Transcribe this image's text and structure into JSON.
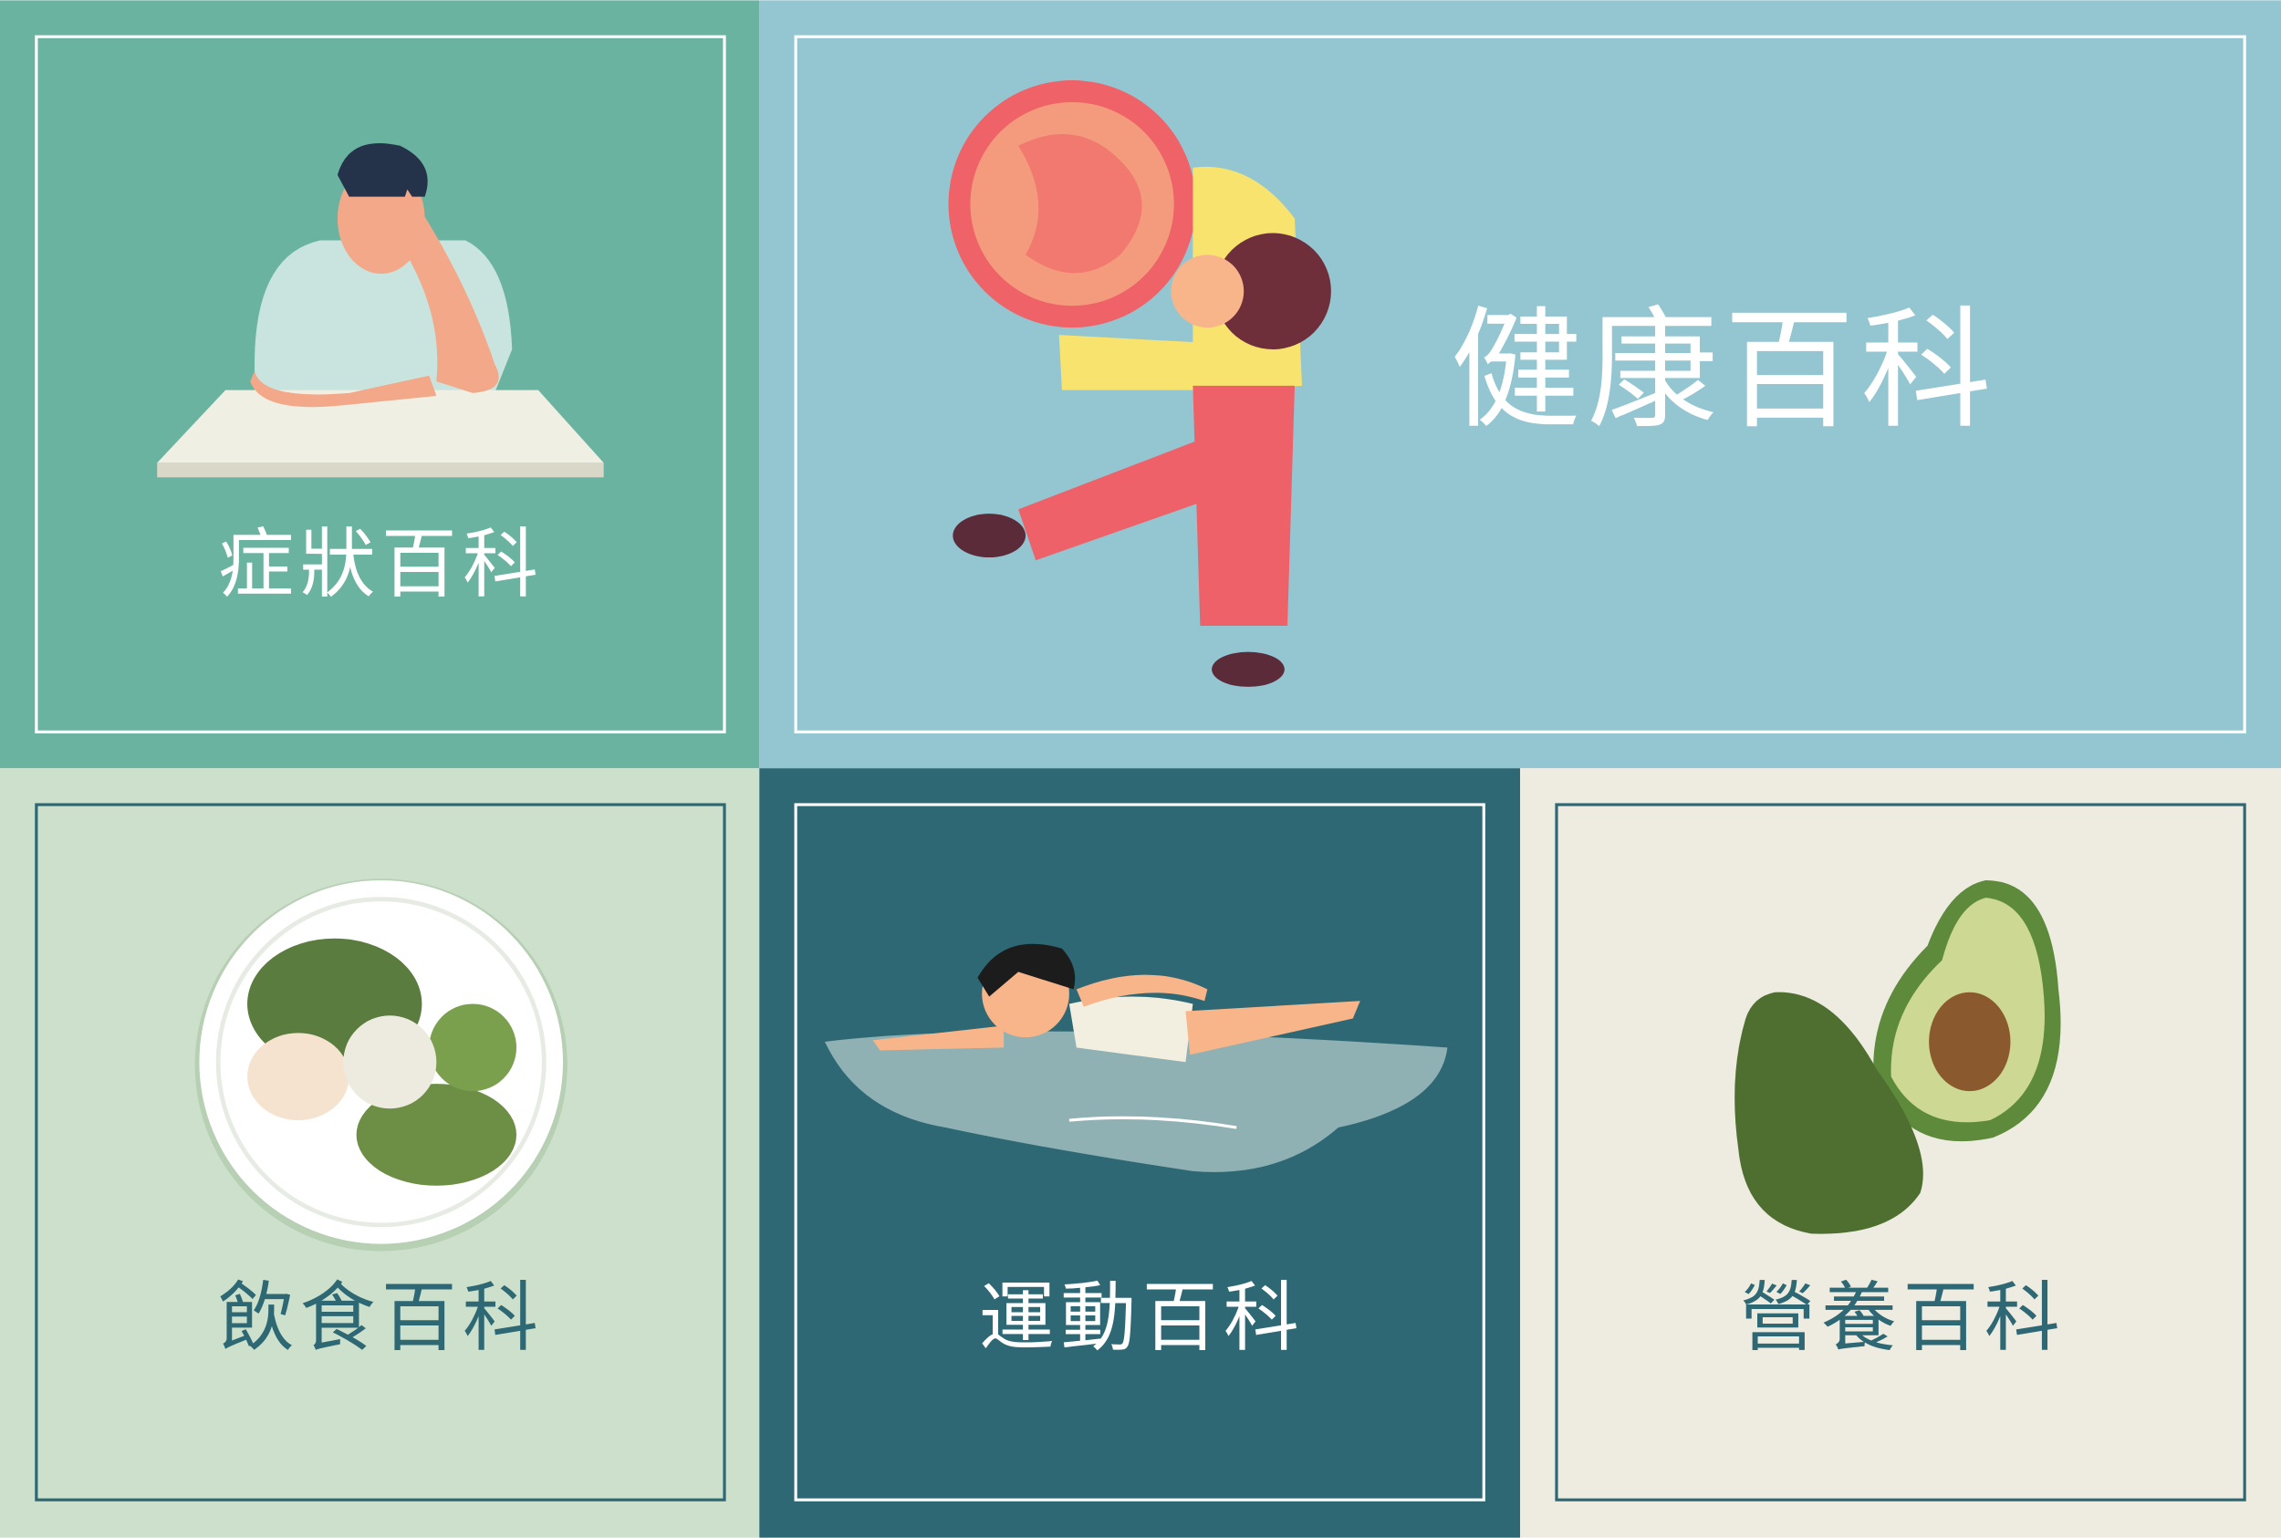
{
  "tiles": [
    {
      "label": "症狀百科"
    },
    {
      "label": "健康百科"
    },
    {
      "label": "飲食百科"
    },
    {
      "label": "運動百科"
    },
    {
      "label": "營養百科"
    }
  ]
}
